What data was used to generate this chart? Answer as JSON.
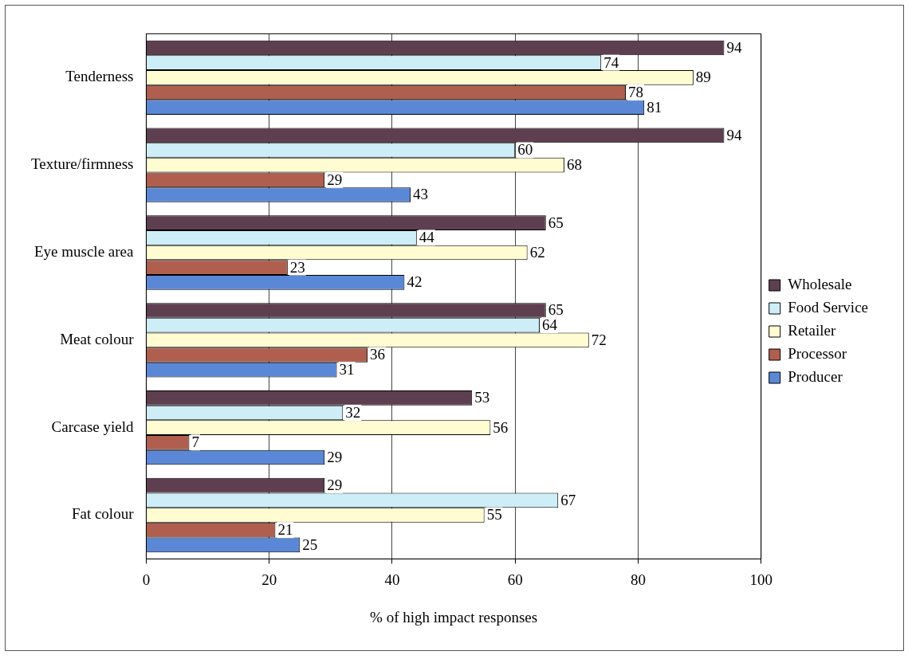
{
  "chart_data": {
    "type": "bar",
    "orientation": "horizontal",
    "xlabel": "% of high impact responses",
    "categories": [
      "Tenderness",
      "Texture/firmness",
      "Eye muscle area",
      "Meat colour",
      "Carcase yield",
      "Fat colour"
    ],
    "series": [
      {
        "name": "Wholesale",
        "color": "#5e3f50",
        "values": [
          94,
          94,
          65,
          65,
          53,
          29
        ]
      },
      {
        "name": "Food Service",
        "color": "#cdeef7",
        "values": [
          74,
          60,
          44,
          64,
          32,
          67
        ]
      },
      {
        "name": "Retailer",
        "color": "#fffcd2",
        "values": [
          89,
          68,
          62,
          72,
          56,
          55
        ]
      },
      {
        "name": "Processor",
        "color": "#b05f4f",
        "values": [
          78,
          29,
          23,
          36,
          7,
          21
        ]
      },
      {
        "name": "Producer",
        "color": "#5b88d6",
        "values": [
          81,
          43,
          42,
          31,
          29,
          25
        ]
      }
    ],
    "xlim": [
      0,
      100
    ],
    "xticks": [
      0,
      20,
      40,
      60,
      80,
      100
    ],
    "grid": "x",
    "legend": "right",
    "data_labels": true
  }
}
